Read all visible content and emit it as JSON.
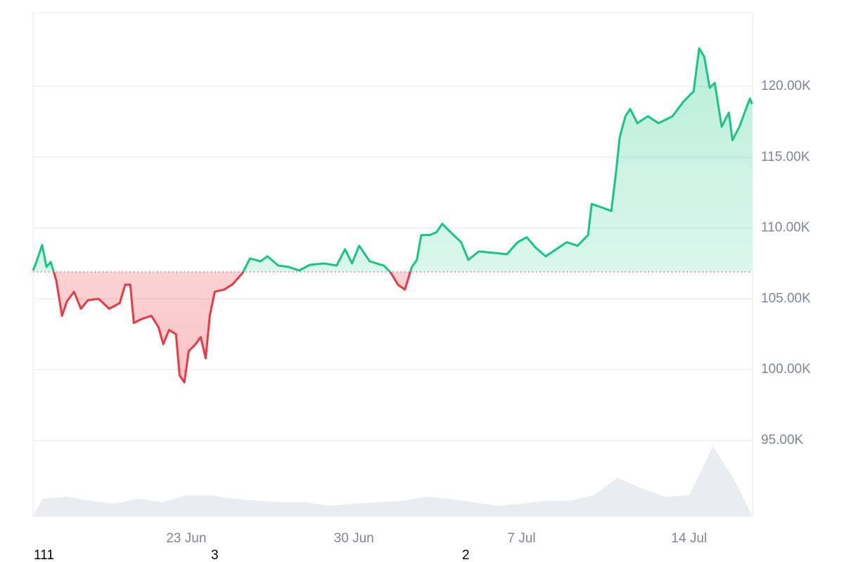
{
  "chart_data": {
    "type": "line",
    "series": [
      {
        "color": "#16c784",
        "below_color": "#ea3943",
        "x": [
          16.6,
          16.75,
          16.98,
          17.16,
          17.34,
          17.57,
          17.81,
          18.01,
          18.31,
          18.6,
          18.89,
          19.34,
          19.78,
          20.22,
          20.45,
          20.66,
          20.81,
          21.1,
          21.54,
          21.84,
          22.04,
          22.28,
          22.57,
          22.72,
          22.92,
          23.1,
          23.39,
          23.6,
          23.81,
          23.98,
          24.19,
          24.57,
          24.92,
          25.36,
          25.66,
          26.1,
          26.39,
          26.84,
          27.28,
          27.72,
          28.16,
          28.75,
          29.28,
          29.63,
          29.92,
          30.22,
          30.66,
          31.25,
          31.54,
          31.84,
          32.13,
          32.42,
          32.63,
          32.81,
          33.16,
          33.45,
          33.69,
          34.04,
          34.48,
          34.78,
          35.22,
          35.81,
          36.39,
          36.84,
          37.22,
          37.57,
          38.01,
          38.45,
          38.89,
          39.34,
          39.78,
          39.93,
          40.36,
          40.75,
          40.95,
          41.1,
          41.34,
          41.54,
          41.84,
          42.28,
          42.72,
          43.31,
          43.75,
          44.19,
          44.42,
          44.63,
          44.86,
          45.07,
          45.36,
          45.66,
          45.81,
          46.1,
          46.54,
          46.63
        ],
        "values": [
          107000,
          107650,
          108800,
          107250,
          107600,
          106300,
          103800,
          104800,
          105500,
          104300,
          104900,
          105000,
          104300,
          104700,
          106000,
          106000,
          103300,
          103550,
          103800,
          103000,
          101800,
          102800,
          102500,
          99600,
          99100,
          101300,
          101800,
          102300,
          100800,
          103800,
          105500,
          105650,
          106000,
          106850,
          107850,
          107650,
          108000,
          107350,
          107250,
          107000,
          107400,
          107500,
          107350,
          108500,
          107500,
          108750,
          107650,
          107350,
          106850,
          106000,
          105650,
          107250,
          107750,
          109500,
          109500,
          109700,
          110300,
          109700,
          109000,
          107750,
          108350,
          108250,
          108150,
          109000,
          109350,
          108650,
          108000,
          108500,
          109000,
          108750,
          109500,
          111700,
          111450,
          111200,
          113950,
          116400,
          117900,
          118400,
          117400,
          117900,
          117400,
          117900,
          118900,
          119650,
          122700,
          122100,
          119900,
          120250,
          117150,
          118150,
          116200,
          117150,
          119150,
          118750
        ]
      }
    ],
    "baseline": 106900,
    "volume": {
      "color": "#e9edf2",
      "x": [
        17,
        18,
        19,
        20,
        21,
        22,
        23,
        24,
        25,
        26,
        27,
        28,
        29,
        30,
        31,
        32,
        33,
        34,
        35,
        36,
        37,
        38,
        39,
        40,
        41,
        42,
        43,
        44,
        45,
        46
      ],
      "values": [
        25,
        28,
        22,
        18,
        25,
        20,
        30,
        30,
        25,
        22,
        20,
        20,
        15,
        18,
        20,
        22,
        28,
        25,
        20,
        15,
        18,
        22,
        22,
        30,
        55,
        40,
        28,
        30,
        100,
        45
      ]
    },
    "y2lim": [
      0,
      120
    ],
    "xlim": [
      16.6,
      46.65
    ],
    "xticks": [
      {
        "value": 23,
        "label": "23 Jun"
      },
      {
        "value": 30,
        "label": "30 Jun"
      },
      {
        "value": 37,
        "label": "7 Jul"
      },
      {
        "value": 44,
        "label": "14 Jul"
      }
    ],
    "ylim": [
      89640,
      125210
    ],
    "yticks": [
      {
        "value": 95000,
        "label": "95.00K"
      },
      {
        "value": 100000,
        "label": "100.00K"
      },
      {
        "value": 105000,
        "label": "105.00K"
      },
      {
        "value": 110000,
        "label": "110.00K"
      },
      {
        "value": 115000,
        "label": "115.00K"
      },
      {
        "value": 120000,
        "label": "120.00K"
      }
    ],
    "grid": true,
    "annotations": [
      "111",
      "3",
      "2"
    ]
  }
}
